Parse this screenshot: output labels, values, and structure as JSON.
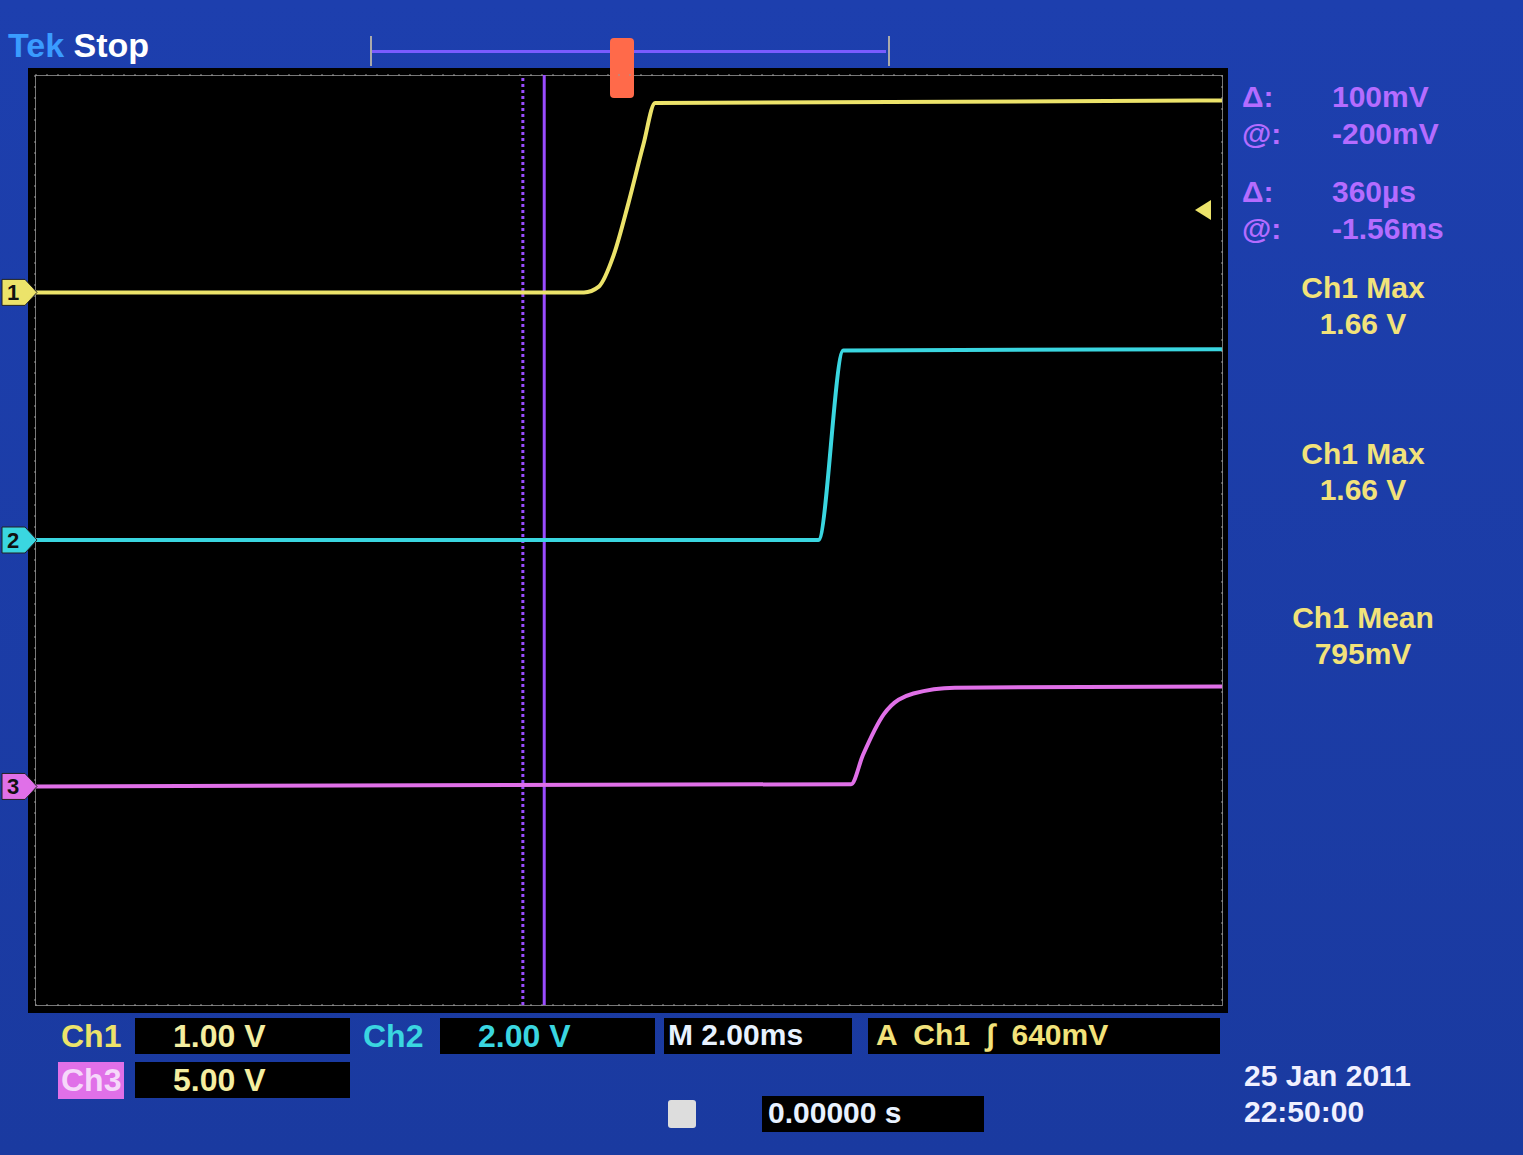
{
  "chart_data": {
    "type": "line",
    "brand": "Tek",
    "status": "Stop",
    "xlim": [
      -10,
      10
    ],
    "xticks": [
      -10,
      -8,
      -6,
      -4,
      -2,
      0,
      2,
      4,
      6,
      8,
      10
    ],
    "ylim": [
      -4,
      4
    ],
    "yticks": [
      -4,
      -3,
      -2,
      -1,
      0,
      1,
      2,
      3,
      4
    ],
    "grid": true,
    "tick_labels": false,
    "series": [
      {
        "name": "1",
        "color": "#ece36a",
        "x": [
          -10,
          -0.75,
          -0.5,
          -0.25,
          0,
          0.25,
          0.45,
          10
        ],
        "values": [
          2.13,
          2.13,
          2.18,
          2.45,
          2.9,
          3.4,
          3.76,
          3.78
        ]
      },
      {
        "name": "2",
        "color": "#3ad6e0",
        "x": [
          -10,
          3.2,
          3.62,
          10
        ],
        "values": [
          0,
          0,
          1.63,
          1.64
        ]
      },
      {
        "name": "3",
        "color": "#e070e8",
        "x": [
          -10,
          3.75,
          3.95,
          4.3,
          4.8,
          5.5,
          10
        ],
        "values": [
          -2.12,
          -2.1,
          -1.85,
          -1.5,
          -1.32,
          -1.27,
          -1.26
        ]
      }
    ],
    "cursors": {
      "x": [
        -1.78,
        -1.42
      ],
      "color": "#9a4cff"
    },
    "readouts": [
      {
        "label": "Δ:",
        "value": "100mV"
      },
      {
        "label": "@:",
        "value": "-200mV"
      },
      {
        "label": "Δ:",
        "value": "360µs"
      },
      {
        "label": "@:",
        "value": "-1.56ms"
      }
    ],
    "measurements": [
      {
        "label": "Ch1 Max",
        "value": "1.66 V"
      },
      {
        "label": "Ch1 Max",
        "value": "1.66 V"
      },
      {
        "label": "Ch1 Mean",
        "value": "795mV"
      }
    ],
    "channel_settings": [
      {
        "label": "Ch1",
        "value": "1.00 V",
        "color": "#ece36a"
      },
      {
        "label": "Ch2",
        "value": "2.00 V",
        "color": "#3ad6e0"
      },
      {
        "label": "Ch3",
        "value": "5.00 V",
        "color": "#e070e8"
      }
    ],
    "timebase": "M 2.00ms",
    "trigger": "A  Ch1  ∫  640mV",
    "trigger_position": "0.00000 s",
    "date": "25 Jan 2011",
    "time": "22:50:00"
  }
}
